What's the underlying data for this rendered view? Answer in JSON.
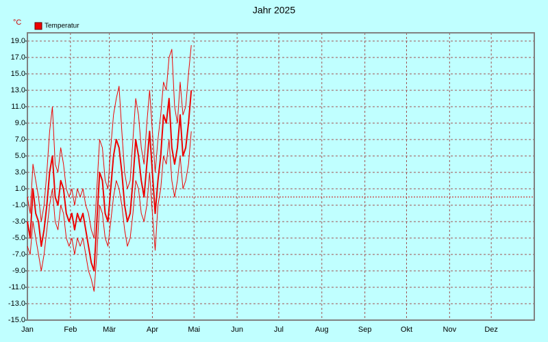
{
  "chart_data": {
    "type": "line",
    "title": "Jahr 2025",
    "y_label": "°C",
    "x": [
      0,
      2,
      4,
      6,
      8,
      10,
      12,
      14,
      16,
      18,
      20,
      22,
      24,
      26,
      28,
      30,
      32,
      34,
      36,
      38,
      40,
      42,
      44,
      46,
      48,
      50,
      52,
      54,
      56,
      58,
      60,
      62,
      64,
      66,
      68,
      70,
      72,
      74,
      76,
      78,
      80,
      82,
      84,
      86,
      88,
      90,
      92,
      94,
      96,
      98,
      100,
      102,
      104,
      106,
      108,
      110,
      112,
      114,
      116,
      118
    ],
    "series": [
      {
        "name": "Temperatur",
        "color": "#ee0000",
        "width": 2,
        "values": [
          -3,
          -5,
          1,
          -2,
          -3,
          -6,
          -4,
          -1,
          3,
          5,
          0,
          -1,
          2,
          1,
          -2,
          -3,
          -2,
          -4,
          -2,
          -3,
          -2,
          -4,
          -6,
          -8,
          -9,
          -3,
          3,
          2,
          -2,
          -3,
          1,
          5,
          7,
          6,
          3,
          -1,
          -3,
          -2,
          2,
          7,
          5,
          2,
          0,
          4,
          8,
          3,
          -2,
          2,
          5,
          10,
          9,
          12,
          6,
          4,
          6,
          10,
          5,
          6,
          9,
          13
        ]
      },
      {
        "color": "#ee0000",
        "width": 1,
        "values": [
          0,
          -2,
          4,
          2,
          0,
          -3,
          -1,
          3,
          8,
          11,
          4,
          3,
          6,
          4,
          1,
          0,
          1,
          -1,
          1,
          0,
          1,
          -1,
          -2,
          -4,
          -5,
          1,
          7,
          6,
          2,
          1,
          6,
          10,
          12,
          13.5,
          8,
          3,
          1,
          2,
          7,
          12,
          10,
          6,
          4,
          9,
          13,
          8,
          3,
          7,
          10,
          14,
          13,
          17,
          18,
          11,
          9,
          14,
          10,
          11,
          15,
          18.5
        ]
      },
      {
        "color": "#ee0000",
        "width": 1,
        "values": [
          -6,
          -7,
          -3,
          -5,
          -7,
          -9,
          -7,
          -4,
          -1,
          1,
          -3,
          -4,
          -1,
          -2,
          -5,
          -6,
          -5,
          -7,
          -5,
          -6,
          -5,
          -7,
          -9,
          -10,
          -11.5,
          -7,
          -1,
          -2,
          -5,
          -6,
          -3,
          0,
          2,
          1,
          -1,
          -4,
          -6,
          -5,
          -2,
          2,
          1,
          -2,
          -3,
          -1,
          3,
          -2,
          -6.5,
          -1,
          1,
          5,
          4,
          7,
          2,
          0,
          2,
          5,
          1,
          2,
          4,
          8
        ]
      }
    ],
    "xlim": [
      0,
      365
    ],
    "xticks": [
      {
        "value": 0,
        "label": "Jan"
      },
      {
        "value": 31,
        "label": "Feb"
      },
      {
        "value": 59,
        "label": "Mär"
      },
      {
        "value": 90,
        "label": "Apr"
      },
      {
        "value": 120,
        "label": "Mai"
      },
      {
        "value": 151,
        "label": "Jun"
      },
      {
        "value": 181,
        "label": "Jul"
      },
      {
        "value": 212,
        "label": "Aug"
      },
      {
        "value": 243,
        "label": "Sep"
      },
      {
        "value": 273,
        "label": "Okt"
      },
      {
        "value": 304,
        "label": "Nov"
      },
      {
        "value": 334,
        "label": "Dez"
      }
    ],
    "ylim": [
      -15,
      20
    ],
    "yticks": [
      {
        "value": -15,
        "label": "-15.0"
      },
      {
        "value": -13,
        "label": "-13.0"
      },
      {
        "value": -11,
        "label": "-11.0"
      },
      {
        "value": -9,
        "label": "-9.0"
      },
      {
        "value": -7,
        "label": "-7.0"
      },
      {
        "value": -5,
        "label": "-5.0"
      },
      {
        "value": -3,
        "label": "-3.0"
      },
      {
        "value": -1,
        "label": "-1.0"
      },
      {
        "value": 1,
        "label": "1.0"
      },
      {
        "value": 3,
        "label": "3.0"
      },
      {
        "value": 5,
        "label": "5.0"
      },
      {
        "value": 7,
        "label": "7.0"
      },
      {
        "value": 9,
        "label": "9.0"
      },
      {
        "value": 11,
        "label": "11.0"
      },
      {
        "value": 13,
        "label": "13.0"
      },
      {
        "value": 15,
        "label": "15.0"
      },
      {
        "value": 17,
        "label": "17.0"
      },
      {
        "value": 19,
        "label": "19.0"
      }
    ],
    "grid": true,
    "zero_line": true,
    "legend": "top-left"
  }
}
